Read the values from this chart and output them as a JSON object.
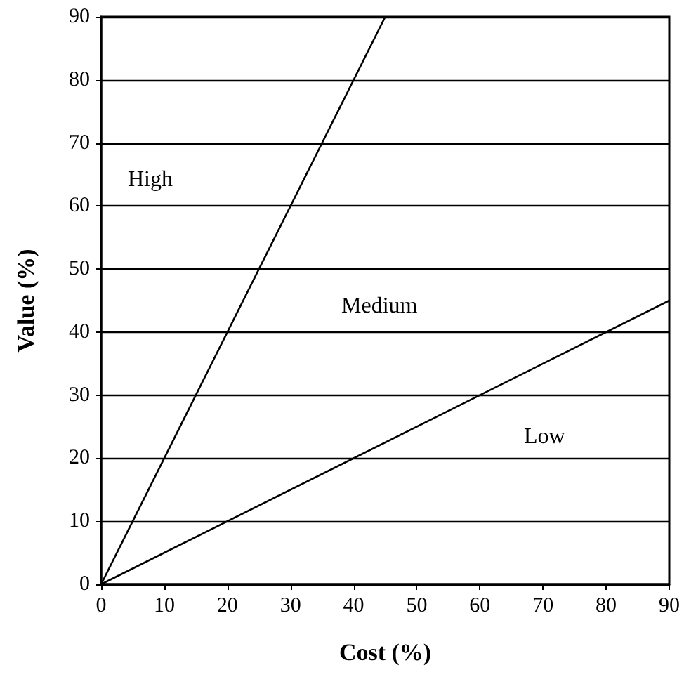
{
  "chart_data": {
    "type": "line",
    "xlabel": "Cost (%)",
    "ylabel": "Value (%)",
    "series": [
      {
        "color": "#000000",
        "x": [
          0,
          45
        ],
        "values": [
          0,
          90
        ]
      },
      {
        "color": "#000000",
        "x": [
          0,
          90
        ],
        "values": [
          0,
          45
        ]
      }
    ],
    "xlim": [
      0,
      90
    ],
    "xticks": [
      0,
      10,
      20,
      30,
      40,
      50,
      60,
      70,
      80,
      90
    ],
    "ylim": [
      0,
      90
    ],
    "yticks": [
      0,
      10,
      20,
      30,
      40,
      50,
      60,
      70,
      80,
      90
    ],
    "grid": "y",
    "marker": "none",
    "line_style": "solid",
    "annotations": [
      "High",
      "Medium",
      "Low"
    ]
  }
}
